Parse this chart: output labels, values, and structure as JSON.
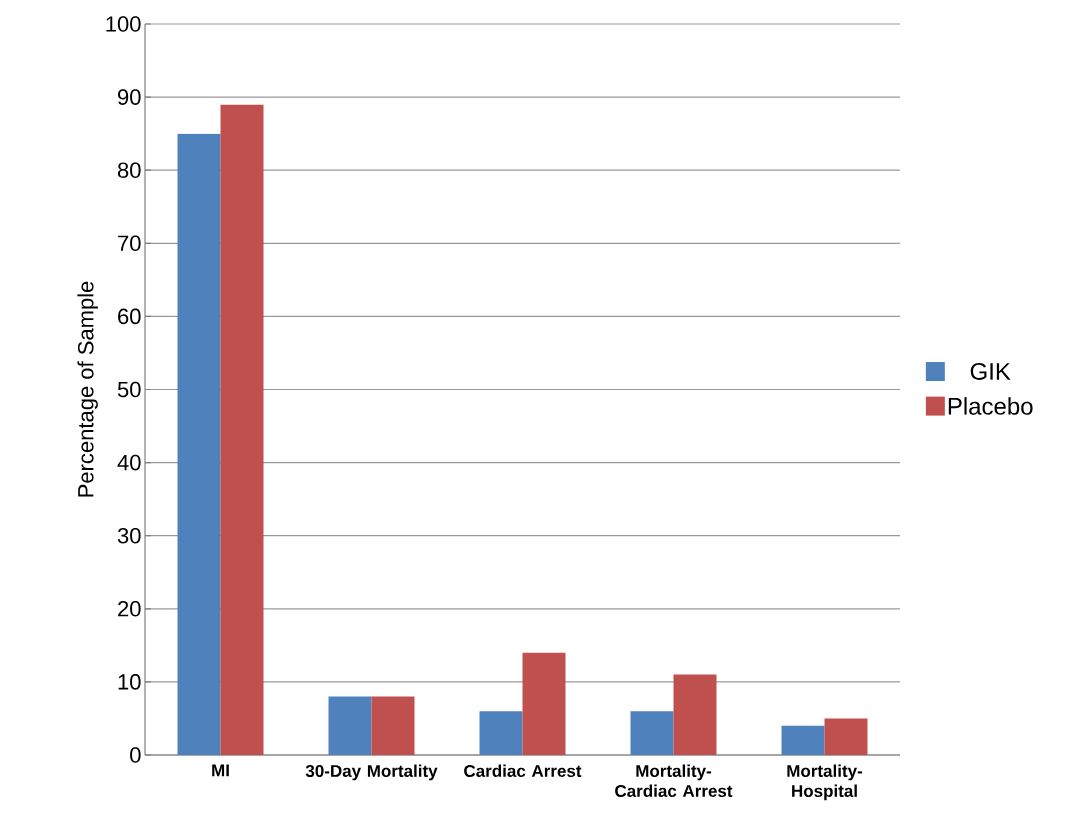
{
  "chart_data": {
    "type": "bar",
    "ylabel": "Percentage of Sample",
    "categories": [
      "MI",
      "30-Day Mortality",
      "Cardiac Arrest",
      "Mortality-Cardiac Arrest",
      "Mortality-Hospital"
    ],
    "series": [
      {
        "name": "GIK",
        "color": "#4f81bd",
        "values": [
          85,
          8,
          6,
          6,
          4
        ]
      },
      {
        "name": "Placebo",
        "color": "#c0504d",
        "values": [
          89,
          8,
          14,
          11,
          5
        ]
      }
    ],
    "ylim": [
      0,
      100
    ],
    "yticks": [
      0,
      10,
      20,
      30,
      40,
      50,
      60,
      70,
      80,
      90,
      100
    ],
    "grid": "y",
    "legend": "right"
  }
}
